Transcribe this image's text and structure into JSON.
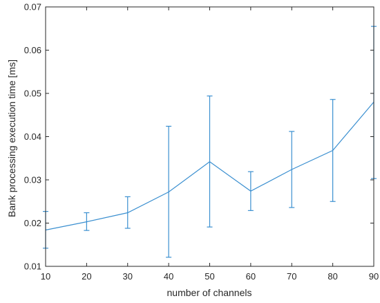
{
  "chart_data": {
    "type": "line",
    "title": "",
    "xlabel": "number of channels",
    "ylabel": "Bank processing execution time [ms]",
    "xlim": [
      10,
      90
    ],
    "ylim": [
      0.01,
      0.07
    ],
    "xticks": [
      10,
      20,
      30,
      40,
      50,
      60,
      70,
      80,
      90
    ],
    "yticks": [
      0.01,
      0.02,
      0.03,
      0.04,
      0.05,
      0.06,
      0.07
    ],
    "ytick_labels": [
      "0.01",
      "0.02",
      "0.03",
      "0.04",
      "0.05",
      "0.06",
      "0.07"
    ],
    "grid": false,
    "legend": "none",
    "series": [
      {
        "color": "#3a8fd0",
        "x": [
          10,
          20,
          30,
          40,
          50,
          60,
          70,
          80,
          90
        ],
        "y": [
          0.0184,
          0.0203,
          0.0224,
          0.0272,
          0.0342,
          0.0274,
          0.0324,
          0.0368,
          0.048
        ],
        "err_low": [
          0.0142,
          0.0183,
          0.0188,
          0.0121,
          0.0191,
          0.0229,
          0.0236,
          0.025,
          0.0303
        ],
        "err_high": [
          0.0227,
          0.0224,
          0.0261,
          0.0424,
          0.0494,
          0.0319,
          0.0412,
          0.0486,
          0.0655
        ]
      }
    ]
  }
}
